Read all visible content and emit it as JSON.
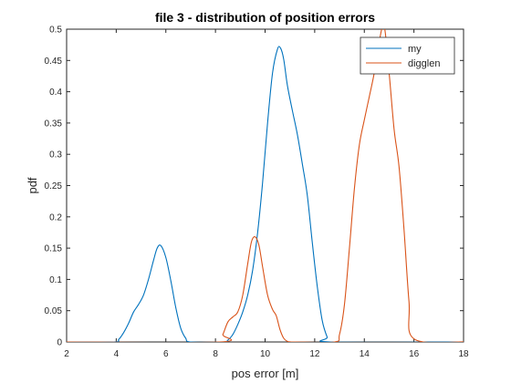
{
  "chart_data": {
    "type": "line",
    "title": "file 3 - distribution of position errors",
    "xlabel": "pos error [m]",
    "ylabel": "pdf",
    "xlim": [
      2,
      18
    ],
    "ylim": [
      0,
      0.5
    ],
    "xticks": [
      2,
      4,
      6,
      8,
      10,
      12,
      14,
      16,
      18
    ],
    "yticks": [
      0,
      0.05,
      0.1,
      0.15,
      0.2,
      0.25,
      0.3,
      0.35,
      0.4,
      0.45,
      0.5
    ],
    "xtick_labels": [
      "2",
      "4",
      "6",
      "8",
      "10",
      "12",
      "14",
      "16",
      "18"
    ],
    "ytick_labels": [
      "0",
      "0.05",
      "0.1",
      "0.15",
      "0.2",
      "0.25",
      "0.3",
      "0.35",
      "0.4",
      "0.45",
      "0.5"
    ],
    "grid": false,
    "legend_position": "top-right",
    "series": [
      {
        "name": "my",
        "color": "#0072BD",
        "x": [
          3.9,
          4.1,
          4.3,
          4.5,
          4.7,
          4.9,
          5.1,
          5.3,
          5.5,
          5.65,
          5.8,
          6.0,
          6.2,
          6.4,
          6.6,
          6.8,
          7.0,
          8.3,
          8.5,
          8.7,
          8.9,
          9.1,
          9.3,
          9.5,
          9.7,
          9.9,
          10.1,
          10.3,
          10.5,
          10.62,
          10.75,
          10.9,
          11.1,
          11.3,
          11.5,
          11.7,
          11.9,
          12.1,
          12.3,
          12.5,
          12.65
        ],
        "y": [
          0,
          0.004,
          0.015,
          0.03,
          0.048,
          0.06,
          0.075,
          0.1,
          0.13,
          0.15,
          0.154,
          0.135,
          0.098,
          0.055,
          0.022,
          0.006,
          0,
          0,
          0.003,
          0.012,
          0.028,
          0.048,
          0.075,
          0.115,
          0.175,
          0.255,
          0.35,
          0.43,
          0.468,
          0.47,
          0.452,
          0.41,
          0.37,
          0.332,
          0.285,
          0.235,
          0.16,
          0.09,
          0.035,
          0.008,
          0
        ]
      },
      {
        "name": "digglen",
        "color": "#D95319",
        "x": [
          8.15,
          8.3,
          8.5,
          8.7,
          8.9,
          9.1,
          9.3,
          9.45,
          9.6,
          9.75,
          9.9,
          10.1,
          10.3,
          10.45,
          10.6,
          10.75,
          10.9,
          11.05,
          11.2,
          12.8,
          13.0,
          13.2,
          13.4,
          13.6,
          13.8,
          14.0,
          14.2,
          14.4,
          14.6,
          14.8,
          15.0,
          15.2,
          15.4,
          15.6,
          15.8,
          16.0
        ],
        "y": [
          0,
          0.012,
          0.032,
          0.04,
          0.048,
          0.075,
          0.125,
          0.16,
          0.168,
          0.155,
          0.12,
          0.075,
          0.052,
          0.042,
          0.02,
          0.006,
          0.001,
          0,
          0,
          0,
          0.012,
          0.06,
          0.15,
          0.245,
          0.315,
          0.355,
          0.392,
          0.43,
          0.48,
          0.505,
          0.43,
          0.34,
          0.28,
          0.18,
          0.065,
          0.005
        ]
      }
    ]
  }
}
